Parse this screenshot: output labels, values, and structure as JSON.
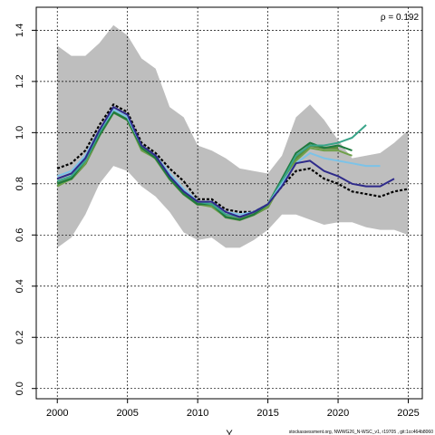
{
  "chart_data": {
    "type": "line",
    "title": "",
    "xlabel": "Y",
    "ylabel": "",
    "xlim": [
      1998.5,
      2026
    ],
    "ylim": [
      -0.04,
      1.49
    ],
    "xticks": [
      2000,
      2005,
      2010,
      2015,
      2020,
      2025
    ],
    "yticks": [
      0.0,
      0.2,
      0.4,
      0.6,
      0.8,
      1.0,
      1.2,
      1.4
    ],
    "grid": true,
    "annotation": "ρ = 0.192",
    "footer": "stockassessment.org, NWWG26_N-WSC_v1, r19705 , git:1cc464b8060",
    "band": {
      "fill": "#bebebe",
      "x": [
        2000,
        2001,
        2002,
        2003,
        2004,
        2005,
        2006,
        2007,
        2008,
        2009,
        2010,
        2011,
        2012,
        2013,
        2014,
        2015,
        2016,
        2017,
        2018,
        2019,
        2020,
        2021,
        2022,
        2023,
        2024,
        2025
      ],
      "upper": [
        1.34,
        1.3,
        1.3,
        1.35,
        1.42,
        1.38,
        1.29,
        1.25,
        1.1,
        1.06,
        0.95,
        0.93,
        0.9,
        0.86,
        0.85,
        0.84,
        0.91,
        1.06,
        1.11,
        1.05,
        0.97,
        0.9,
        0.91,
        0.92,
        0.96,
        1.01
      ],
      "lower": [
        0.55,
        0.59,
        0.68,
        0.8,
        0.87,
        0.85,
        0.79,
        0.75,
        0.69,
        0.61,
        0.58,
        0.59,
        0.55,
        0.55,
        0.58,
        0.62,
        0.68,
        0.68,
        0.66,
        0.64,
        0.65,
        0.65,
        0.63,
        0.62,
        0.62,
        0.6
      ]
    },
    "series": [
      {
        "color": "#000000",
        "dashed": true,
        "width": 2.2,
        "x": [
          2000,
          2001,
          2002,
          2003,
          2004,
          2005,
          2006,
          2007,
          2008,
          2009,
          2010,
          2011,
          2012,
          2013,
          2014,
          2015,
          2016,
          2017,
          2018,
          2019,
          2020,
          2021,
          2022,
          2023,
          2024,
          2025
        ],
        "values": [
          0.86,
          0.88,
          0.93,
          1.03,
          1.11,
          1.08,
          0.96,
          0.92,
          0.86,
          0.81,
          0.74,
          0.74,
          0.7,
          0.69,
          0.69,
          0.72,
          0.79,
          0.85,
          0.86,
          0.82,
          0.8,
          0.77,
          0.76,
          0.75,
          0.77,
          0.78
        ]
      },
      {
        "color": "#5a8a3a",
        "dashed": false,
        "width": 3,
        "x": [
          2000,
          2001,
          2002,
          2003,
          2004,
          2005,
          2006,
          2007,
          2008,
          2009,
          2010,
          2011,
          2012,
          2013,
          2014,
          2015,
          2016,
          2017,
          2018,
          2019,
          2020
        ],
        "values": [
          0.8,
          0.82,
          0.88,
          0.99,
          1.08,
          1.05,
          0.94,
          0.9,
          0.82,
          0.76,
          0.72,
          0.72,
          0.67,
          0.66,
          0.68,
          0.71,
          0.81,
          0.9,
          0.95,
          0.94,
          0.94
        ]
      },
      {
        "color": "#6fa04a",
        "dashed": false,
        "width": 2,
        "x": [
          2000,
          2001,
          2002,
          2003,
          2004,
          2005,
          2006,
          2007,
          2008,
          2009,
          2010,
          2011,
          2012,
          2013,
          2014,
          2015,
          2016,
          2017,
          2018,
          2019,
          2020,
          2021
        ],
        "values": [
          0.79,
          0.82,
          0.88,
          0.99,
          1.08,
          1.05,
          0.93,
          0.9,
          0.82,
          0.76,
          0.72,
          0.71,
          0.67,
          0.66,
          0.68,
          0.71,
          0.8,
          0.89,
          0.94,
          0.93,
          0.93,
          0.91
        ]
      },
      {
        "color": "#1e7a3e",
        "dashed": false,
        "width": 2,
        "x": [
          2000,
          2001,
          2002,
          2003,
          2004,
          2005,
          2006,
          2007,
          2008,
          2009,
          2010,
          2011,
          2012,
          2013,
          2014,
          2015,
          2016,
          2017,
          2018,
          2019,
          2020,
          2021
        ],
        "values": [
          0.8,
          0.82,
          0.89,
          0.99,
          1.08,
          1.05,
          0.94,
          0.9,
          0.82,
          0.76,
          0.72,
          0.72,
          0.67,
          0.66,
          0.68,
          0.72,
          0.82,
          0.92,
          0.96,
          0.94,
          0.95,
          0.93
        ]
      },
      {
        "color": "#3aa58a",
        "dashed": false,
        "width": 2,
        "x": [
          2000,
          2001,
          2002,
          2003,
          2004,
          2005,
          2006,
          2007,
          2008,
          2009,
          2010,
          2011,
          2012,
          2013,
          2014,
          2015,
          2016,
          2017,
          2018,
          2019,
          2020,
          2021,
          2022
        ],
        "values": [
          0.81,
          0.83,
          0.89,
          1.0,
          1.09,
          1.06,
          0.95,
          0.91,
          0.83,
          0.77,
          0.73,
          0.72,
          0.68,
          0.67,
          0.69,
          0.72,
          0.81,
          0.91,
          0.95,
          0.95,
          0.96,
          0.98,
          1.03
        ]
      },
      {
        "color": "#7cc3e8",
        "dashed": false,
        "width": 2,
        "x": [
          2000,
          2001,
          2002,
          2003,
          2004,
          2005,
          2006,
          2007,
          2008,
          2009,
          2010,
          2011,
          2012,
          2013,
          2014,
          2015,
          2016,
          2017,
          2018,
          2019,
          2020,
          2021,
          2022,
          2023
        ],
        "values": [
          0.83,
          0.85,
          0.91,
          1.01,
          1.09,
          1.06,
          0.95,
          0.91,
          0.84,
          0.78,
          0.73,
          0.73,
          0.69,
          0.68,
          0.69,
          0.72,
          0.8,
          0.88,
          0.92,
          0.9,
          0.89,
          0.88,
          0.87,
          0.87
        ]
      },
      {
        "color": "#2e2a8a",
        "dashed": false,
        "width": 2,
        "x": [
          2000,
          2001,
          2002,
          2003,
          2004,
          2005,
          2006,
          2007,
          2008,
          2009,
          2010,
          2011,
          2012,
          2013,
          2014,
          2015,
          2016,
          2017,
          2018,
          2019,
          2020,
          2021,
          2022,
          2023,
          2024
        ],
        "values": [
          0.82,
          0.84,
          0.9,
          1.01,
          1.1,
          1.07,
          0.95,
          0.91,
          0.83,
          0.77,
          0.73,
          0.73,
          0.69,
          0.67,
          0.69,
          0.72,
          0.79,
          0.88,
          0.89,
          0.85,
          0.83,
          0.8,
          0.79,
          0.79,
          0.82
        ]
      }
    ]
  }
}
